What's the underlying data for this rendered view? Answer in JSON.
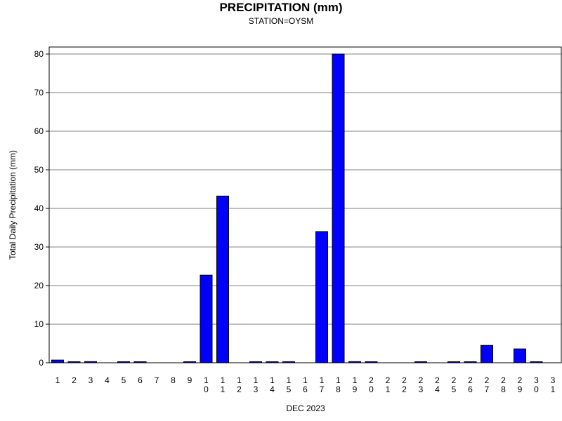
{
  "chart_data": {
    "type": "bar",
    "title": "PRECIPITATION (mm)",
    "subtitle": "STATION=OYSM",
    "xlabel": "DEC 2023",
    "ylabel": "Total Daily Precipitation (mm)",
    "ylim": [
      0,
      80
    ],
    "yticks": [
      0,
      10,
      20,
      30,
      40,
      50,
      60,
      70,
      80
    ],
    "grid": true,
    "bar_color": "#0000ff",
    "categories": [
      "1",
      "2",
      "3",
      "4",
      "5",
      "6",
      "7",
      "8",
      "9",
      "10",
      "11",
      "12",
      "13",
      "14",
      "15",
      "16",
      "17",
      "18",
      "19",
      "20",
      "21",
      "22",
      "23",
      "24",
      "25",
      "26",
      "27",
      "28",
      "29",
      "30",
      "31"
    ],
    "values": [
      0.7,
      0.1,
      0.3,
      0,
      0.1,
      0.1,
      0,
      0,
      0.1,
      22.7,
      43.2,
      0,
      0.1,
      0.1,
      0.1,
      0,
      34.0,
      80.0,
      0.3,
      0.1,
      0,
      0,
      0.1,
      0,
      0.1,
      0.1,
      4.5,
      0,
      3.6,
      0.1,
      0
    ]
  }
}
